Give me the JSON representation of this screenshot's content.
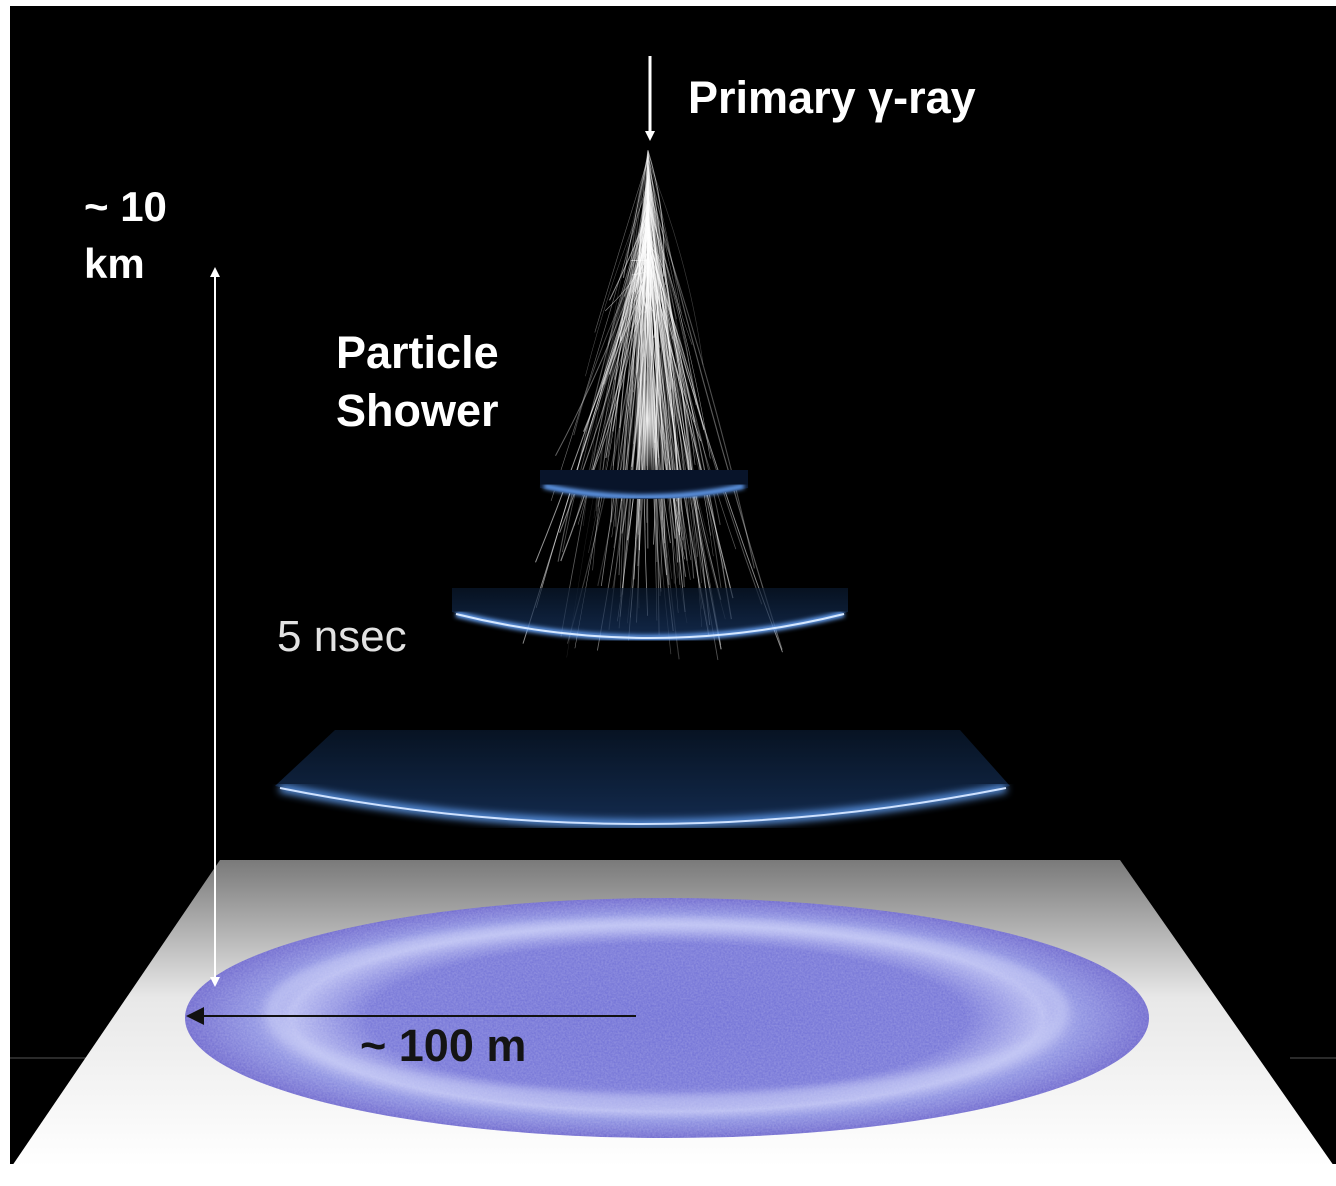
{
  "labels": {
    "primary": "Primary γ-ray",
    "height": "~ 10\nkm",
    "shower": "Particle\nShower",
    "time": "5 nsec",
    "width": "~ 100 m"
  },
  "colors": {
    "sky": "#000000",
    "ground_light": "#ffffff",
    "ground_shade": "#808080",
    "cherenkov_pool": "#6a6ad0",
    "cherenkov_ring": "#bcc0f2",
    "light_front": "#4a8ee8",
    "arrow_light": "#ffffff",
    "arrow_dark": "#111111"
  }
}
